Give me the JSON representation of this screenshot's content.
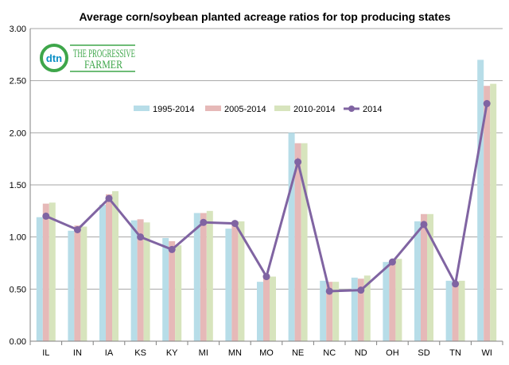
{
  "logo": {
    "mark": "dtn",
    "line1": "THE PROGRESSIVE",
    "line2": "FARMER"
  },
  "colors": {
    "s1": "#b7dde8",
    "s2": "#e6b9b8",
    "s3": "#d7e4bd",
    "s4": "#8064a2",
    "logo_blue": "#0b8fc5",
    "logo_green": "#3ea64a"
  },
  "chart_data": {
    "type": "bar",
    "title": "Average corn/soybean planted acreage ratios for top producing states",
    "xlabel": "",
    "ylabel": "",
    "categories": [
      "IL",
      "IN",
      "IA",
      "KS",
      "KY",
      "MI",
      "MN",
      "MO",
      "NE",
      "NC",
      "ND",
      "OH",
      "SD",
      "TN",
      "WI"
    ],
    "ylim": [
      0,
      3
    ],
    "yticks": [
      "0.00",
      "0.50",
      "1.00",
      "1.50",
      "2.00",
      "2.50",
      "3.00"
    ],
    "grid": true,
    "legend_position": "top-center",
    "series": [
      {
        "name": "1995-2014",
        "type": "bar",
        "values": [
          1.19,
          1.06,
          1.31,
          1.16,
          0.99,
          1.23,
          1.08,
          0.57,
          2.0,
          0.58,
          0.61,
          0.76,
          1.15,
          0.58,
          2.7
        ]
      },
      {
        "name": "2005-2014",
        "type": "bar",
        "values": [
          1.32,
          1.11,
          1.41,
          1.17,
          0.96,
          1.23,
          1.15,
          0.61,
          1.9,
          0.57,
          0.6,
          0.78,
          1.22,
          0.57,
          2.45
        ]
      },
      {
        "name": "2010-2014",
        "type": "bar",
        "values": [
          1.33,
          1.1,
          1.44,
          1.14,
          0.92,
          1.25,
          1.15,
          0.62,
          1.9,
          0.57,
          0.63,
          0.79,
          1.22,
          0.58,
          2.47
        ]
      },
      {
        "name": "2014",
        "type": "line",
        "values": [
          1.2,
          1.07,
          1.37,
          1.0,
          0.88,
          1.14,
          1.13,
          0.62,
          1.72,
          0.48,
          0.49,
          0.76,
          1.12,
          0.55,
          2.28
        ]
      }
    ]
  }
}
